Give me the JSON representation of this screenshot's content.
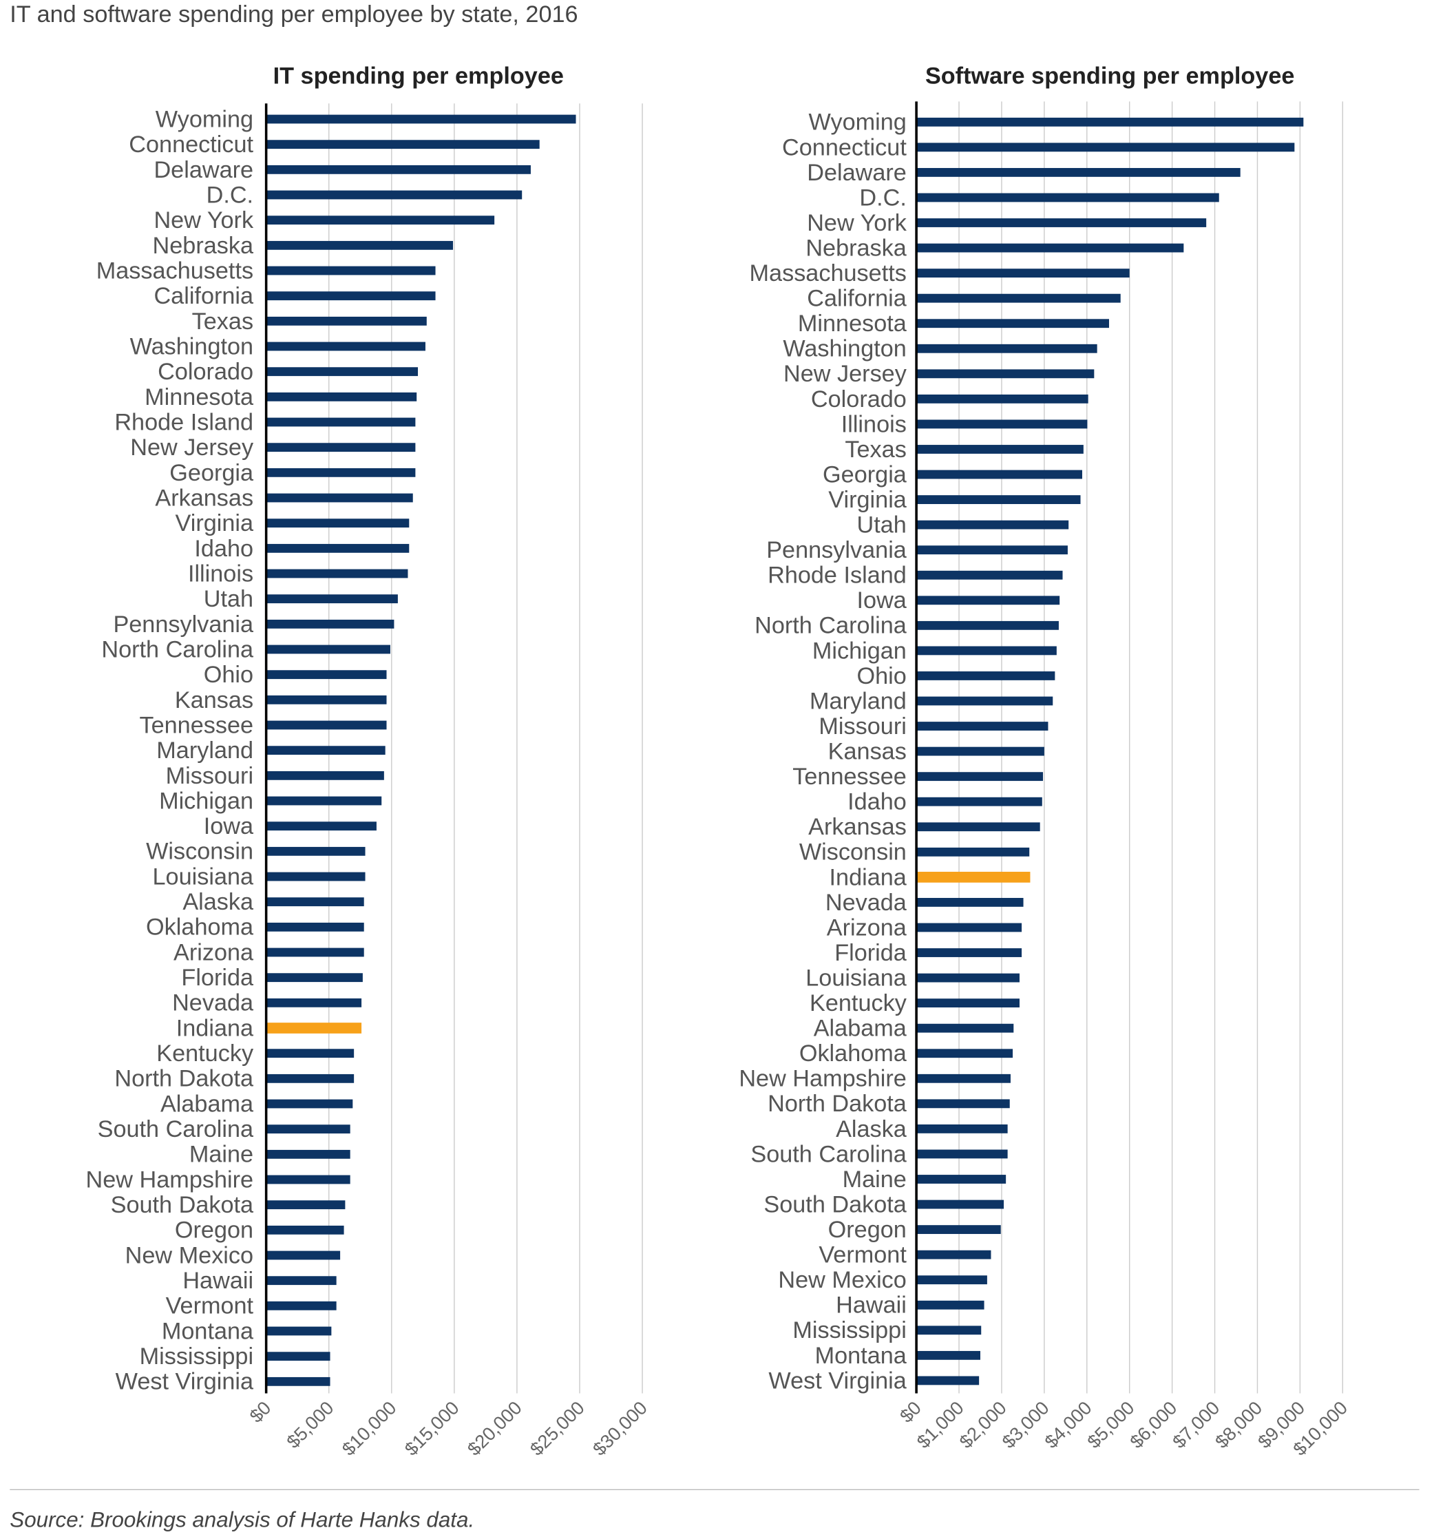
{
  "title": "IT and software spending per employee by state, 2016",
  "source": "Source: Brookings analysis of Harte Hanks data.",
  "colors": {
    "bar": "#0d3464",
    "highlight": "#f7a11a",
    "grid": "#cccccc",
    "axis": "#000000"
  },
  "chart_data": [
    {
      "type": "bar",
      "orientation": "horizontal",
      "title": "IT spending per employee",
      "xlim": [
        0,
        30000
      ],
      "ticks": [
        0,
        5000,
        10000,
        15000,
        20000,
        25000,
        30000
      ],
      "tick_labels": [
        "$0",
        "$5,000",
        "$10,000",
        "$15,000",
        "$20,000",
        "$25,000",
        "$30,000"
      ],
      "grid": true,
      "highlight": "Indiana",
      "categories": [
        "Wyoming",
        "Connecticut",
        "Delaware",
        "D.C.",
        "New York",
        "Nebraska",
        "Massachusetts",
        "California",
        "Texas",
        "Washington",
        "Colorado",
        "Minnesota",
        "Rhode Island",
        "New Jersey",
        "Georgia",
        "Arkansas",
        "Virginia",
        "Idaho",
        "Illinois",
        "Utah",
        "Pennsylvania",
        "North Carolina",
        "Ohio",
        "Kansas",
        "Tennessee",
        "Maryland",
        "Missouri",
        "Michigan",
        "Iowa",
        "Wisconsin",
        "Louisiana",
        "Alaska",
        "Oklahoma",
        "Arizona",
        "Florida",
        "Nevada",
        "Indiana",
        "Kentucky",
        "North Dakota",
        "Alabama",
        "South Carolina",
        "Maine",
        "New Hampshire",
        "South Dakota",
        "Oregon",
        "New Mexico",
        "Hawaii",
        "Vermont",
        "Montana",
        "Mississippi",
        "West Virginia"
      ],
      "values": [
        24700,
        21800,
        21100,
        20400,
        18200,
        14900,
        13500,
        13500,
        12800,
        12700,
        12100,
        12000,
        11900,
        11900,
        11900,
        11700,
        11400,
        11400,
        11300,
        10500,
        10200,
        9900,
        9600,
        9600,
        9600,
        9500,
        9400,
        9200,
        8800,
        7900,
        7900,
        7800,
        7800,
        7800,
        7700,
        7600,
        7600,
        7000,
        7000,
        6900,
        6700,
        6700,
        6700,
        6300,
        6200,
        5900,
        5600,
        5600,
        5200,
        5100,
        5100
      ]
    },
    {
      "type": "bar",
      "orientation": "horizontal",
      "title": "Software spending per employee",
      "xlim": [
        0,
        10000
      ],
      "ticks": [
        0,
        1000,
        2000,
        3000,
        4000,
        5000,
        6000,
        7000,
        8000,
        9000,
        10000
      ],
      "tick_labels": [
        "$0",
        "$1,000",
        "$2,000",
        "$3,000",
        "$4,000",
        "$5,000",
        "$6,000",
        "$7,000",
        "$8,000",
        "$9,000",
        "$10,000"
      ],
      "grid": true,
      "highlight": "Indiana",
      "categories": [
        "Wyoming",
        "Connecticut",
        "Delaware",
        "D.C.",
        "New York",
        "Nebraska",
        "Massachusetts",
        "California",
        "Minnesota",
        "Washington",
        "New Jersey",
        "Colorado",
        "Illinois",
        "Texas",
        "Georgia",
        "Virginia",
        "Utah",
        "Pennsylvania",
        "Rhode Island",
        "Iowa",
        "North Carolina",
        "Michigan",
        "Ohio",
        "Maryland",
        "Missouri",
        "Kansas",
        "Tennessee",
        "Idaho",
        "Arkansas",
        "Wisconsin",
        "Indiana",
        "Nevada",
        "Arizona",
        "Florida",
        "Louisiana",
        "Kentucky",
        "Alabama",
        "Oklahoma",
        "New Hampshire",
        "North Dakota",
        "Alaska",
        "South Carolina",
        "Maine",
        "South Dakota",
        "Oregon",
        "Vermont",
        "New Mexico",
        "Hawaii",
        "Mississippi",
        "Montana",
        "West Virginia"
      ],
      "values": [
        9080,
        8870,
        7600,
        7100,
        6800,
        6270,
        5000,
        4790,
        4520,
        4240,
        4170,
        4030,
        4010,
        3920,
        3890,
        3850,
        3570,
        3550,
        3430,
        3360,
        3340,
        3290,
        3250,
        3200,
        3090,
        3000,
        2970,
        2950,
        2900,
        2650,
        2670,
        2510,
        2470,
        2470,
        2420,
        2420,
        2280,
        2260,
        2210,
        2190,
        2140,
        2140,
        2100,
        2050,
        1980,
        1750,
        1660,
        1590,
        1520,
        1500,
        1470
      ]
    }
  ]
}
